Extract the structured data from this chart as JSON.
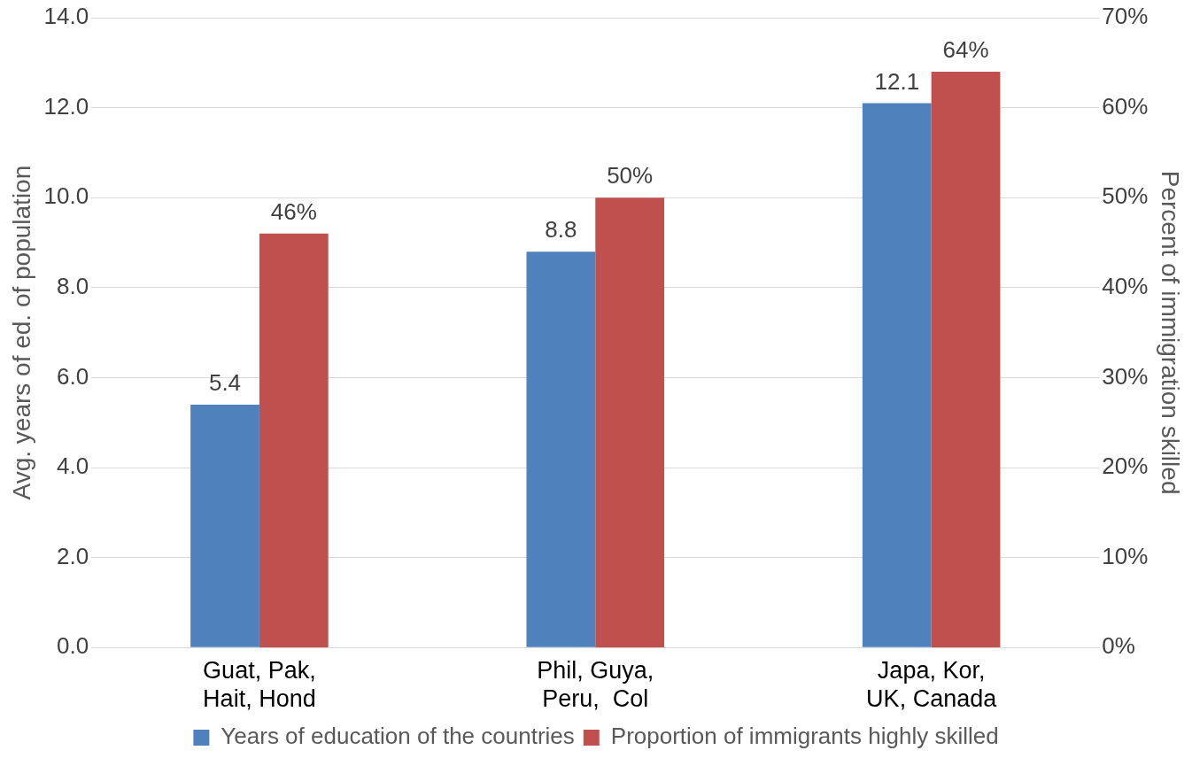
{
  "chart_data": {
    "type": "bar",
    "categories": [
      "Guat, Pak, Hait, Hond",
      "Phil, Guya, Peru,  Col",
      "Japa, Kor, UK, Canada"
    ],
    "series": [
      {
        "name": "Years of education of the countries",
        "color": "#4f81bd",
        "values": [
          5.4,
          8.8,
          12.1
        ],
        "value_labels": [
          "5.4",
          "8.8",
          "12.1"
        ]
      },
      {
        "name": "Proportion of immigrants highly skilled",
        "color": "#c0504d",
        "axis": "y2",
        "values": [
          46,
          50,
          64
        ],
        "value_labels": [
          "46%",
          "50%",
          "64%"
        ]
      }
    ],
    "ylabel": "Avg. years of ed. of population",
    "y2label": "Percent of immigration skilled",
    "ylim": [
      0,
      14
    ],
    "yticks": [
      {
        "value": 0,
        "label": "0.0"
      },
      {
        "value": 2,
        "label": "2.0"
      },
      {
        "value": 4,
        "label": "4.0"
      },
      {
        "value": 6,
        "label": "6.0"
      },
      {
        "value": 8,
        "label": "8.0"
      },
      {
        "value": 10,
        "label": "10.0"
      },
      {
        "value": 12,
        "label": "12.0"
      },
      {
        "value": 14,
        "label": "14.0"
      }
    ],
    "y2lim": [
      0,
      70
    ],
    "y2ticks": [
      {
        "value": 0,
        "label": "0%"
      },
      {
        "value": 10,
        "label": "10%"
      },
      {
        "value": 20,
        "label": "20%"
      },
      {
        "value": 30,
        "label": "30%"
      },
      {
        "value": 40,
        "label": "40%"
      },
      {
        "value": 50,
        "label": "50%"
      },
      {
        "value": 60,
        "label": "60%"
      },
      {
        "value": 70,
        "label": "70%"
      }
    ],
    "grid": "y",
    "legend": "bottom"
  }
}
